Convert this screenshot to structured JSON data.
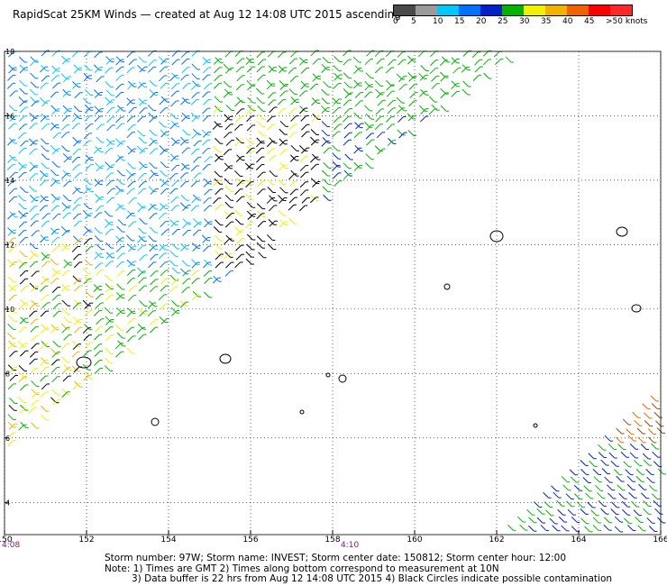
{
  "header": {
    "title": "RapidScat 25KM Winds — created at Aug 12 14:08 UTC 2015 ascending"
  },
  "legend": {
    "colors": [
      "#4a4a4a",
      "#9a9a9a",
      "#00c8ff",
      "#0070ff",
      "#0020c8",
      "#00b400",
      "#f0f000",
      "#f0b400",
      "#f06400",
      "#ff0000",
      "#ff2828",
      "#8b4513",
      "#6b3c1e",
      "#ff00ff",
      "#a000d0",
      "#7000a0",
      "#ffffff"
    ],
    "labels": [
      "0",
      "5",
      "10",
      "15",
      "20",
      "25",
      "30",
      "35",
      "40",
      "45",
      ">50 knots"
    ]
  },
  "map": {
    "x_ticks": [
      "150",
      "152",
      "154",
      "156",
      "158",
      "160",
      "162",
      "164",
      "166"
    ],
    "y_ticks": [
      "4",
      "6",
      "8",
      "10",
      "12",
      "14",
      "16",
      "18"
    ],
    "times": [
      "4:08",
      "4:10"
    ]
  },
  "footer": {
    "line1": "Storm number: 97W;  Storm name: INVEST;  Storm center date: 150812;  Storm center hour: 12:00",
    "line2": "Note: 1) Times are GMT  2) Times along bottom correspond to measurement at 10N",
    "line3": "3) Data buffer is 22 hrs from Aug 12 14:08 UTC 2015   4) Black Circles indicate possible contamination"
  }
}
